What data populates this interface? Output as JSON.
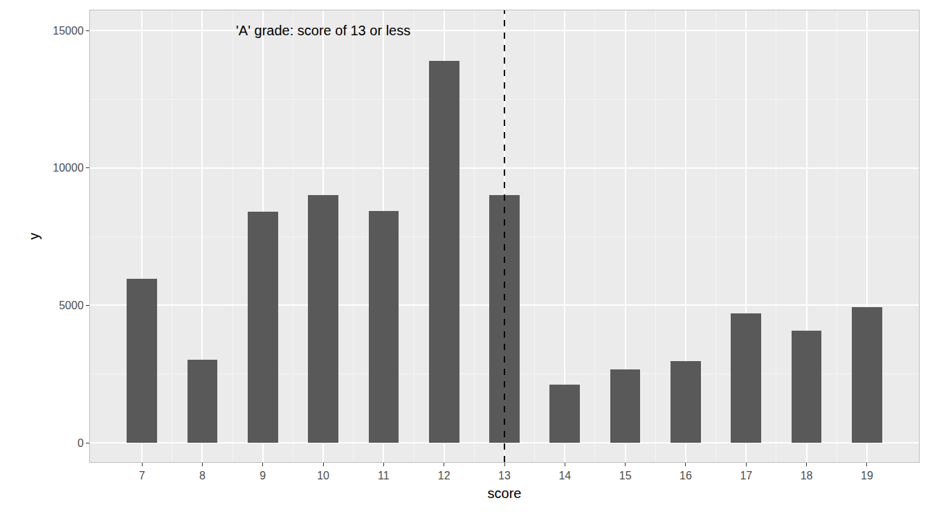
{
  "chart_data": {
    "type": "bar",
    "x_label": "score",
    "y_label": "y",
    "x": [
      7,
      8,
      9,
      10,
      11,
      12,
      13,
      14,
      15,
      16,
      17,
      18,
      19
    ],
    "values": [
      5980,
      3020,
      8400,
      9000,
      8430,
      13900,
      9000,
      2130,
      2660,
      2970,
      4700,
      4090,
      4930
    ],
    "color": "#595959",
    "xlim": [
      6.14,
      19.86
    ],
    "xticks": [
      7,
      8,
      9,
      10,
      11,
      12,
      13,
      14,
      15,
      16,
      17,
      18,
      19
    ],
    "ylim": [
      -700,
      15730
    ],
    "yticks": [
      0,
      5000,
      10000,
      15000
    ],
    "grid": true,
    "reference_line": {
      "x": 13,
      "line_style": "dashed"
    },
    "annotations": [
      {
        "text": "'A' grade: score of 13 or less",
        "x": 10,
        "y": 15000
      }
    ]
  }
}
